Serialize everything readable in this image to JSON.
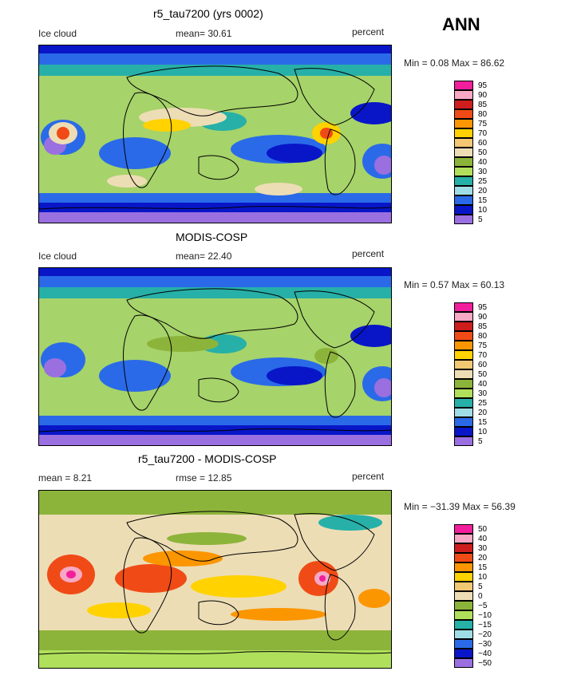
{
  "season": "ANN",
  "legends": {
    "abs_colors": [
      "#f21e9c",
      "#f7a8c4",
      "#cd1d1d",
      "#f04b16",
      "#fb9600",
      "#ffd200",
      "#f3c873",
      "#edddb5",
      "#8db43a",
      "#b0e05b",
      "#26b0a8",
      "#9fdde6",
      "#2a6ae8",
      "#0816c8",
      "#9a6fe0"
    ],
    "abs_ticks": [
      "95",
      "90",
      "85",
      "80",
      "75",
      "70",
      "60",
      "50",
      "40",
      "30",
      "25",
      "20",
      "15",
      "10",
      "5"
    ],
    "diff_colors": [
      "#f21e9c",
      "#f7a8c4",
      "#cd1d1d",
      "#f04b16",
      "#fb9600",
      "#ffd200",
      "#f3c873",
      "#edddb5",
      "#8db43a",
      "#b0e05b",
      "#26b0a8",
      "#9fdde6",
      "#2a6ae8",
      "#0816c8",
      "#9a6fe0"
    ],
    "diff_ticks": [
      "50",
      "40",
      "30",
      "20",
      "15",
      "10",
      "5",
      "0",
      "−5",
      "−10",
      "−15",
      "−20",
      "−30",
      "−40",
      "−50"
    ]
  },
  "panels": [
    {
      "title": "r5_tau7200 (yrs 0002)",
      "left_label": "Ice cloud",
      "center_label": "mean=   30.61",
      "right_label": "percent",
      "minmax": "Min =    0.08 Max =   86.62",
      "kind": "abs",
      "base_color": "#a6d36a"
    },
    {
      "title": "MODIS-COSP",
      "left_label": "Ice cloud",
      "center_label": "mean=   22.40",
      "right_label": "percent",
      "minmax": "Min =    0.57 Max =   60.13",
      "kind": "abs",
      "base_color": "#a6d36a"
    },
    {
      "title": "r5_tau7200 - MODIS-COSP",
      "left_label": "mean =    8.21",
      "center_label": "rmse =   12.85",
      "right_label": "percent",
      "minmax": "Min = −31.39 Max =   56.39",
      "kind": "diff",
      "base_color": "#edddb5"
    }
  ]
}
